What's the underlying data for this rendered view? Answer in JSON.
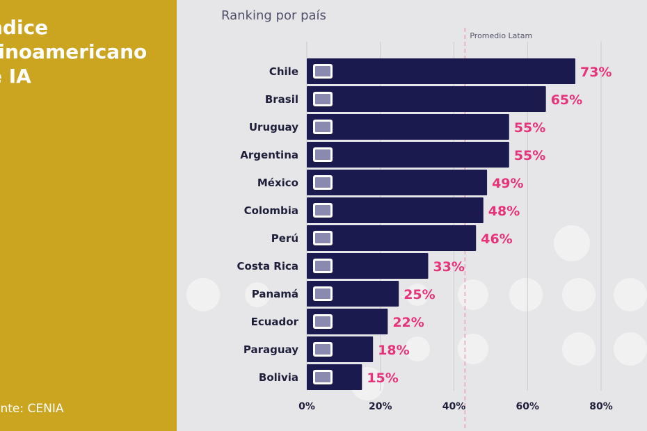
{
  "sidebar": {
    "title_lines": [
      "ndice",
      "tinoamericano",
      "e IA"
    ],
    "source": "ente: CENIA"
  },
  "chart_data": {
    "type": "bar",
    "orientation": "horizontal",
    "title": "Ranking por país",
    "categories": [
      "Chile",
      "Brasil",
      "Uruguay",
      "Argentina",
      "México",
      "Colombia",
      "Perú",
      "Costa Rica",
      "Panamá",
      "Ecuador",
      "Paraguay",
      "Bolivia"
    ],
    "values": [
      73,
      65,
      55,
      55,
      49,
      48,
      46,
      33,
      25,
      22,
      18,
      15
    ],
    "value_labels": [
      "73%",
      "65%",
      "55%",
      "55%",
      "49%",
      "48%",
      "46%",
      "33%",
      "25%",
      "22%",
      "18%",
      "15%"
    ],
    "xlim": [
      0,
      80
    ],
    "xticks": [
      0,
      20,
      40,
      60,
      80
    ],
    "xtick_labels": [
      "0%",
      "20%",
      "40%",
      "60%",
      "80%"
    ],
    "grid": true,
    "reference_line": {
      "label": "Promedio Latam",
      "value": 43
    },
    "colors": {
      "bar": "#1b1a4e",
      "value_label": "#e6337a",
      "reference_line": "#e6a0b8",
      "label": "#1f1f3a"
    }
  }
}
